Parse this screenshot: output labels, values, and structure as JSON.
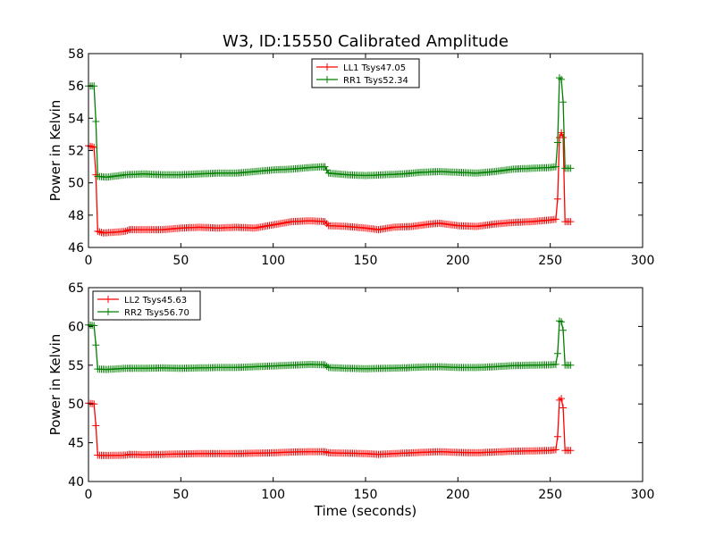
{
  "chart_data": [
    {
      "type": "line",
      "title": "W3, ID:15550 Calibrated Amplitude",
      "xlabel": "",
      "ylabel": "Power in Kelvin",
      "xlim": [
        0,
        300
      ],
      "ylim": [
        46,
        58
      ],
      "xticks": [
        "0",
        "50",
        "100",
        "150",
        "200",
        "250",
        "300"
      ],
      "yticks": [
        "46",
        "48",
        "50",
        "52",
        "54",
        "56",
        "58"
      ],
      "legend_position": "top-center",
      "grid": false,
      "series": [
        {
          "name": "LL1 Tsys47.05",
          "color": "#ff0000",
          "points": [
            [
              0,
              52.3
            ],
            [
              3,
              52.2
            ],
            [
              4,
              50.5
            ],
            [
              5,
              47.0
            ],
            [
              8,
              46.9
            ],
            [
              15,
              46.95
            ],
            [
              20,
              47.0
            ],
            [
              22,
              47.1
            ],
            [
              30,
              47.1
            ],
            [
              40,
              47.1
            ],
            [
              50,
              47.2
            ],
            [
              60,
              47.25
            ],
            [
              70,
              47.2
            ],
            [
              80,
              47.25
            ],
            [
              90,
              47.2
            ],
            [
              100,
              47.4
            ],
            [
              105,
              47.5
            ],
            [
              110,
              47.6
            ],
            [
              120,
              47.65
            ],
            [
              128,
              47.6
            ],
            [
              130,
              47.35
            ],
            [
              140,
              47.3
            ],
            [
              150,
              47.2
            ],
            [
              157,
              47.1
            ],
            [
              165,
              47.25
            ],
            [
              175,
              47.3
            ],
            [
              185,
              47.45
            ],
            [
              190,
              47.5
            ],
            [
              200,
              47.35
            ],
            [
              210,
              47.3
            ],
            [
              220,
              47.45
            ],
            [
              230,
              47.55
            ],
            [
              240,
              47.6
            ],
            [
              250,
              47.7
            ],
            [
              253,
              47.75
            ],
            [
              254,
              49.0
            ],
            [
              255,
              52.8
            ],
            [
              256,
              53.1
            ],
            [
              257,
              52.8
            ],
            [
              258,
              47.6
            ],
            [
              261,
              47.6
            ]
          ]
        },
        {
          "name": "RR1 Tsys52.34",
          "color": "#008000",
          "points": [
            [
              0,
              56.0
            ],
            [
              3,
              56.0
            ],
            [
              4,
              53.8
            ],
            [
              5,
              50.4
            ],
            [
              10,
              50.35
            ],
            [
              20,
              50.5
            ],
            [
              30,
              50.55
            ],
            [
              40,
              50.5
            ],
            [
              50,
              50.5
            ],
            [
              60,
              50.55
            ],
            [
              70,
              50.6
            ],
            [
              80,
              50.6
            ],
            [
              90,
              50.7
            ],
            [
              100,
              50.8
            ],
            [
              110,
              50.85
            ],
            [
              120,
              50.95
            ],
            [
              128,
              51.0
            ],
            [
              130,
              50.6
            ],
            [
              140,
              50.5
            ],
            [
              150,
              50.45
            ],
            [
              160,
              50.5
            ],
            [
              170,
              50.55
            ],
            [
              180,
              50.65
            ],
            [
              190,
              50.7
            ],
            [
              200,
              50.65
            ],
            [
              210,
              50.6
            ],
            [
              220,
              50.7
            ],
            [
              230,
              50.85
            ],
            [
              240,
              50.9
            ],
            [
              250,
              50.95
            ],
            [
              253,
              51.0
            ],
            [
              254,
              52.5
            ],
            [
              255,
              56.5
            ],
            [
              256,
              56.4
            ],
            [
              257,
              55.0
            ],
            [
              258,
              50.9
            ],
            [
              261,
              50.9
            ]
          ]
        }
      ]
    },
    {
      "type": "line",
      "title": "",
      "xlabel": "Time (seconds)",
      "ylabel": "Power in Kelvin",
      "xlim": [
        0,
        300
      ],
      "ylim": [
        40,
        65
      ],
      "xticks": [
        "0",
        "50",
        "100",
        "150",
        "200",
        "250",
        "300"
      ],
      "yticks": [
        "40",
        "45",
        "50",
        "55",
        "60",
        "65"
      ],
      "legend_position": "top-left",
      "grid": false,
      "series": [
        {
          "name": "LL2 Tsys45.63",
          "color": "#ff0000",
          "points": [
            [
              0,
              50.1
            ],
            [
              3,
              50.0
            ],
            [
              4,
              47.2
            ],
            [
              5,
              43.4
            ],
            [
              10,
              43.35
            ],
            [
              20,
              43.4
            ],
            [
              22,
              43.5
            ],
            [
              30,
              43.45
            ],
            [
              40,
              43.5
            ],
            [
              50,
              43.55
            ],
            [
              60,
              43.6
            ],
            [
              70,
              43.6
            ],
            [
              80,
              43.6
            ],
            [
              90,
              43.65
            ],
            [
              100,
              43.7
            ],
            [
              110,
              43.8
            ],
            [
              120,
              43.85
            ],
            [
              128,
              43.85
            ],
            [
              130,
              43.7
            ],
            [
              140,
              43.65
            ],
            [
              150,
              43.6
            ],
            [
              157,
              43.5
            ],
            [
              165,
              43.6
            ],
            [
              175,
              43.7
            ],
            [
              185,
              43.8
            ],
            [
              190,
              43.85
            ],
            [
              200,
              43.75
            ],
            [
              210,
              43.7
            ],
            [
              220,
              43.8
            ],
            [
              230,
              43.9
            ],
            [
              240,
              43.95
            ],
            [
              250,
              44.0
            ],
            [
              253,
              44.1
            ],
            [
              254,
              45.8
            ],
            [
              255,
              50.5
            ],
            [
              256,
              50.7
            ],
            [
              257,
              49.5
            ],
            [
              258,
              44.0
            ],
            [
              261,
              44.0
            ]
          ]
        },
        {
          "name": "RR2 Tsys56.70",
          "color": "#008000",
          "points": [
            [
              0,
              60.2
            ],
            [
              3,
              60.1
            ],
            [
              4,
              57.6
            ],
            [
              5,
              54.5
            ],
            [
              10,
              54.45
            ],
            [
              20,
              54.6
            ],
            [
              30,
              54.6
            ],
            [
              40,
              54.65
            ],
            [
              50,
              54.6
            ],
            [
              60,
              54.65
            ],
            [
              70,
              54.7
            ],
            [
              80,
              54.7
            ],
            [
              90,
              54.8
            ],
            [
              100,
              54.9
            ],
            [
              110,
              55.0
            ],
            [
              120,
              55.1
            ],
            [
              128,
              55.05
            ],
            [
              130,
              54.7
            ],
            [
              140,
              54.6
            ],
            [
              150,
              54.55
            ],
            [
              160,
              54.6
            ],
            [
              170,
              54.65
            ],
            [
              180,
              54.75
            ],
            [
              190,
              54.8
            ],
            [
              200,
              54.7
            ],
            [
              210,
              54.7
            ],
            [
              220,
              54.8
            ],
            [
              230,
              54.95
            ],
            [
              240,
              55.0
            ],
            [
              250,
              55.05
            ],
            [
              253,
              55.1
            ],
            [
              254,
              56.5
            ],
            [
              255,
              60.7
            ],
            [
              256,
              60.6
            ],
            [
              257,
              59.5
            ],
            [
              258,
              55.0
            ],
            [
              261,
              55.0
            ]
          ]
        }
      ]
    }
  ]
}
